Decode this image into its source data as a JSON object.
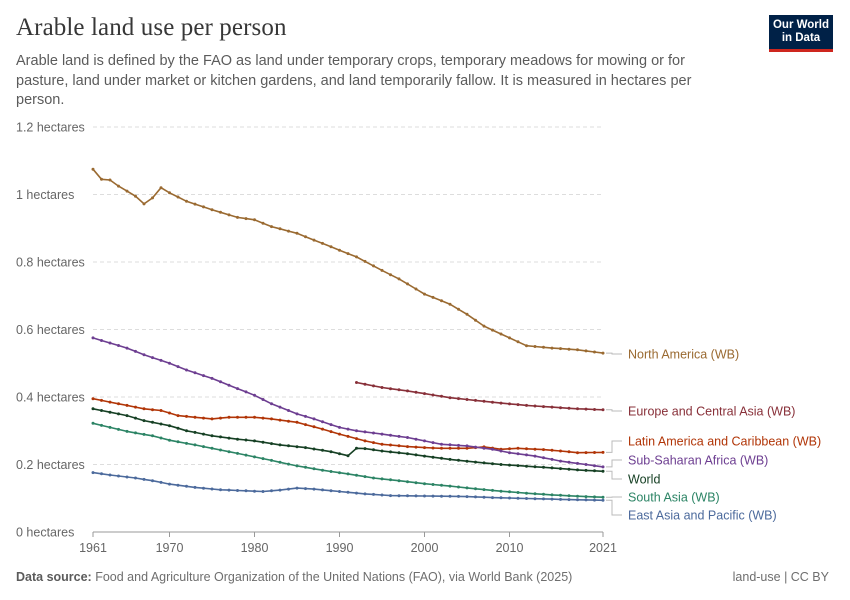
{
  "header": {
    "title": "Arable land use per person",
    "subtitle": "Arable land is defined by the FAO as land under temporary crops, temporary meadows for mowing or for pasture, land under market or kitchen gardens, and land temporarily fallow. It is measured in hectares per person."
  },
  "logo": {
    "line1": "Our World",
    "line2": "in Data",
    "bg_color": "#002147",
    "accent_color": "#ce261e"
  },
  "footer": {
    "source_label": "Data source:",
    "source_text": "Food and Agriculture Organization of the United Nations (FAO), via World Bank (2025)",
    "license": "land-use | CC BY"
  },
  "chart_data": {
    "type": "line",
    "ylim": [
      0,
      1.2
    ],
    "xlim": [
      1961,
      2021
    ],
    "yticks": [
      {
        "value": 0,
        "label": "0 hectares"
      },
      {
        "value": 0.2,
        "label": "0.2 hectares"
      },
      {
        "value": 0.4,
        "label": "0.4 hectares"
      },
      {
        "value": 0.6,
        "label": "0.6 hectares"
      },
      {
        "value": 0.8,
        "label": "0.8 hectares"
      },
      {
        "value": 1.0,
        "label": "1 hectares"
      },
      {
        "value": 1.2,
        "label": "1.2 hectares"
      }
    ],
    "xticks": [
      {
        "value": 1961,
        "label": "1961"
      },
      {
        "value": 1970,
        "label": "1970"
      },
      {
        "value": 1980,
        "label": "1980"
      },
      {
        "value": 1990,
        "label": "1990"
      },
      {
        "value": 2000,
        "label": "2000"
      },
      {
        "value": 2010,
        "label": "2010"
      },
      {
        "value": 2021,
        "label": "2021"
      }
    ],
    "grid": "horizontal-dashed",
    "legend": "right-end-labels",
    "series": [
      {
        "name": "North America (WB)",
        "color": "#9a6a31",
        "points": [
          [
            1961,
            1.075
          ],
          [
            1962,
            1.045
          ],
          [
            1963,
            1.043
          ],
          [
            1964,
            1.025
          ],
          [
            1965,
            1.01
          ],
          [
            1966,
            0.995
          ],
          [
            1967,
            0.972
          ],
          [
            1968,
            0.99
          ],
          [
            1969,
            1.02
          ],
          [
            1970,
            1.005
          ],
          [
            1972,
            0.98
          ],
          [
            1975,
            0.955
          ],
          [
            1978,
            0.932
          ],
          [
            1980,
            0.925
          ],
          [
            1982,
            0.905
          ],
          [
            1985,
            0.885
          ],
          [
            1987,
            0.865
          ],
          [
            1990,
            0.835
          ],
          [
            1992,
            0.815
          ],
          [
            1995,
            0.775
          ],
          [
            1997,
            0.75
          ],
          [
            2000,
            0.705
          ],
          [
            2003,
            0.675
          ],
          [
            2005,
            0.645
          ],
          [
            2007,
            0.61
          ],
          [
            2010,
            0.575
          ],
          [
            2012,
            0.552
          ],
          [
            2015,
            0.545
          ],
          [
            2018,
            0.54
          ],
          [
            2021,
            0.53
          ]
        ]
      },
      {
        "name": "Europe and Central Asia (WB)",
        "color": "#883039",
        "points": [
          [
            1992,
            0.443
          ],
          [
            1995,
            0.428
          ],
          [
            1998,
            0.418
          ],
          [
            2000,
            0.41
          ],
          [
            2003,
            0.398
          ],
          [
            2006,
            0.39
          ],
          [
            2009,
            0.382
          ],
          [
            2012,
            0.375
          ],
          [
            2015,
            0.37
          ],
          [
            2018,
            0.365
          ],
          [
            2021,
            0.362
          ]
        ]
      },
      {
        "name": "Latin America and Caribbean (WB)",
        "color": "#b13507",
        "points": [
          [
            1961,
            0.395
          ],
          [
            1963,
            0.385
          ],
          [
            1965,
            0.375
          ],
          [
            1967,
            0.365
          ],
          [
            1969,
            0.36
          ],
          [
            1971,
            0.345
          ],
          [
            1973,
            0.34
          ],
          [
            1975,
            0.335
          ],
          [
            1977,
            0.34
          ],
          [
            1980,
            0.34
          ],
          [
            1982,
            0.335
          ],
          [
            1985,
            0.325
          ],
          [
            1988,
            0.305
          ],
          [
            1990,
            0.29
          ],
          [
            1993,
            0.27
          ],
          [
            1995,
            0.26
          ],
          [
            1998,
            0.253
          ],
          [
            2000,
            0.25
          ],
          [
            2002,
            0.248
          ],
          [
            2005,
            0.248
          ],
          [
            2007,
            0.252
          ],
          [
            2009,
            0.245
          ],
          [
            2011,
            0.248
          ],
          [
            2014,
            0.244
          ],
          [
            2016,
            0.24
          ],
          [
            2018,
            0.235
          ],
          [
            2021,
            0.236
          ]
        ]
      },
      {
        "name": "Sub-Saharan Africa (WB)",
        "color": "#6d3e91",
        "points": [
          [
            1961,
            0.575
          ],
          [
            1963,
            0.56
          ],
          [
            1965,
            0.545
          ],
          [
            1967,
            0.525
          ],
          [
            1970,
            0.5
          ],
          [
            1972,
            0.48
          ],
          [
            1975,
            0.455
          ],
          [
            1978,
            0.425
          ],
          [
            1980,
            0.405
          ],
          [
            1982,
            0.38
          ],
          [
            1985,
            0.35
          ],
          [
            1987,
            0.335
          ],
          [
            1990,
            0.31
          ],
          [
            1992,
            0.3
          ],
          [
            1995,
            0.29
          ],
          [
            1998,
            0.28
          ],
          [
            2000,
            0.27
          ],
          [
            2002,
            0.26
          ],
          [
            2005,
            0.255
          ],
          [
            2008,
            0.245
          ],
          [
            2010,
            0.235
          ],
          [
            2013,
            0.225
          ],
          [
            2016,
            0.21
          ],
          [
            2019,
            0.2
          ],
          [
            2021,
            0.193
          ]
        ]
      },
      {
        "name": "World",
        "color": "#00295b",
        "lineColor": "#164024",
        "points": [
          [
            1961,
            0.365
          ],
          [
            1963,
            0.355
          ],
          [
            1965,
            0.345
          ],
          [
            1967,
            0.33
          ],
          [
            1970,
            0.315
          ],
          [
            1972,
            0.3
          ],
          [
            1975,
            0.285
          ],
          [
            1978,
            0.275
          ],
          [
            1980,
            0.27
          ],
          [
            1983,
            0.258
          ],
          [
            1986,
            0.25
          ],
          [
            1989,
            0.238
          ],
          [
            1991,
            0.226
          ],
          [
            1992,
            0.248
          ],
          [
            1993,
            0.247
          ],
          [
            1995,
            0.24
          ],
          [
            1998,
            0.232
          ],
          [
            2000,
            0.225
          ],
          [
            2003,
            0.215
          ],
          [
            2006,
            0.207
          ],
          [
            2009,
            0.2
          ],
          [
            2012,
            0.195
          ],
          [
            2015,
            0.19
          ],
          [
            2018,
            0.184
          ],
          [
            2021,
            0.18
          ]
        ]
      },
      {
        "name": "South Asia (WB)",
        "color": "#2c8465",
        "points": [
          [
            1961,
            0.322
          ],
          [
            1963,
            0.31
          ],
          [
            1965,
            0.298
          ],
          [
            1968,
            0.285
          ],
          [
            1970,
            0.272
          ],
          [
            1973,
            0.258
          ],
          [
            1976,
            0.243
          ],
          [
            1979,
            0.228
          ],
          [
            1982,
            0.212
          ],
          [
            1985,
            0.196
          ],
          [
            1988,
            0.183
          ],
          [
            1991,
            0.172
          ],
          [
            1994,
            0.16
          ],
          [
            1997,
            0.152
          ],
          [
            2000,
            0.143
          ],
          [
            2003,
            0.136
          ],
          [
            2006,
            0.128
          ],
          [
            2009,
            0.121
          ],
          [
            2012,
            0.115
          ],
          [
            2015,
            0.11
          ],
          [
            2018,
            0.106
          ],
          [
            2021,
            0.103
          ]
        ]
      },
      {
        "name": "East Asia and Pacific (WB)",
        "color": "#4c6a9c",
        "points": [
          [
            1961,
            0.176
          ],
          [
            1963,
            0.169
          ],
          [
            1966,
            0.16
          ],
          [
            1968,
            0.152
          ],
          [
            1970,
            0.142
          ],
          [
            1973,
            0.132
          ],
          [
            1976,
            0.125
          ],
          [
            1979,
            0.122
          ],
          [
            1981,
            0.12
          ],
          [
            1983,
            0.124
          ],
          [
            1985,
            0.13
          ],
          [
            1987,
            0.127
          ],
          [
            1990,
            0.12
          ],
          [
            1993,
            0.113
          ],
          [
            1996,
            0.108
          ],
          [
            1999,
            0.107
          ],
          [
            2002,
            0.106
          ],
          [
            2005,
            0.105
          ],
          [
            2008,
            0.102
          ],
          [
            2011,
            0.1
          ],
          [
            2014,
            0.098
          ],
          [
            2017,
            0.096
          ],
          [
            2021,
            0.094
          ]
        ]
      }
    ],
    "end_labels": [
      {
        "text": "North America (WB)",
        "color": "#9a6a31"
      },
      {
        "text": "Europe and Central Asia (WB)",
        "color": "#883039"
      },
      {
        "text": "Latin America and Caribbean (WB)",
        "color": "#b13507"
      },
      {
        "text": "Sub-Saharan Africa (WB)",
        "color": "#6d3e91"
      },
      {
        "text": "World",
        "color": "#164024"
      },
      {
        "text": "South Asia (WB)",
        "color": "#2c8465"
      },
      {
        "text": "East Asia and Pacific (WB)",
        "color": "#4c6a9c"
      }
    ]
  }
}
